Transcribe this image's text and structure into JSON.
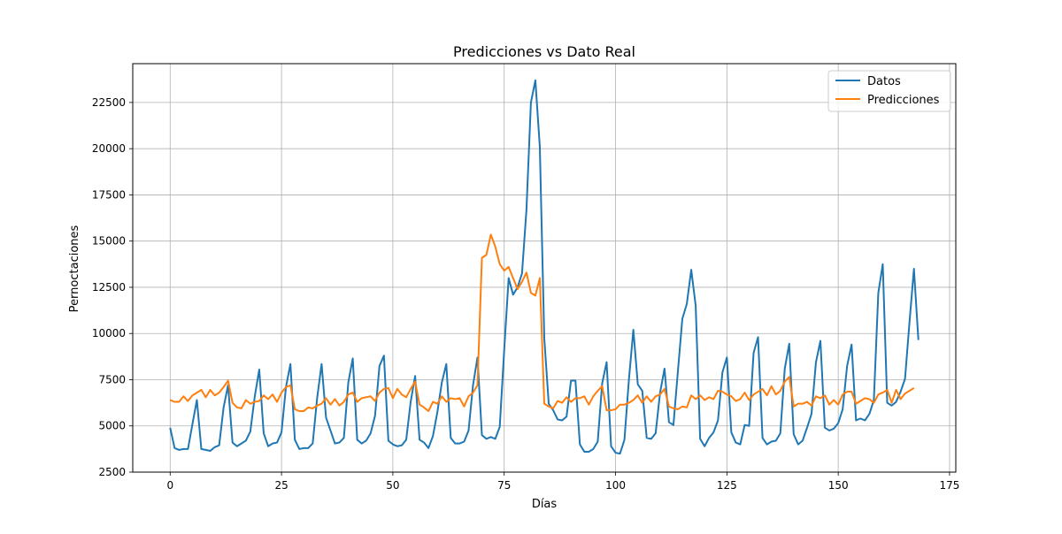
{
  "chart_data": {
    "type": "line",
    "title": "Predicciones vs Dato Real",
    "xlabel": "Días",
    "ylabel": "Pernoctaciones",
    "xlim": [
      -8.4,
      176.4
    ],
    "ylim": [
      2500,
      24600
    ],
    "xticks": [
      0,
      25,
      50,
      75,
      100,
      125,
      150,
      175
    ],
    "yticks": [
      2500,
      5000,
      7500,
      10000,
      12500,
      15000,
      17500,
      20000,
      22500
    ],
    "grid": true,
    "legend_position": "top-right",
    "series": [
      {
        "name": "Datos",
        "color": "#1f77b4",
        "values": [
          4900,
          3800,
          3700,
          3750,
          3750,
          5100,
          6400,
          3750,
          3700,
          3650,
          3850,
          3950,
          6000,
          7200,
          4100,
          3900,
          4050,
          4200,
          4700,
          6600,
          8050,
          4600,
          3900,
          4050,
          4100,
          4650,
          7100,
          8350,
          4250,
          3750,
          3800,
          3800,
          4050,
          6500,
          8350,
          5450,
          4750,
          4050,
          4100,
          4350,
          7350,
          8650,
          4250,
          4050,
          4200,
          4600,
          5550,
          8250,
          8800,
          4200,
          4000,
          3900,
          3950,
          4250,
          6300,
          7700,
          4250,
          4100,
          3800,
          4450,
          5750,
          7350,
          8350,
          4350,
          4050,
          4050,
          4150,
          4750,
          7200,
          8700,
          4500,
          4300,
          4400,
          4300,
          4950,
          9100,
          13000,
          12100,
          12500,
          13250,
          16700,
          22500,
          23700,
          20100,
          9750,
          6200,
          5850,
          5350,
          5300,
          5500,
          7450,
          7450,
          4000,
          3600,
          3600,
          3750,
          4150,
          7300,
          8450,
          3900,
          3550,
          3500,
          4250,
          7500,
          10200,
          7250,
          6900,
          4350,
          4300,
          4600,
          6800,
          8100,
          5200,
          5050,
          7950,
          10800,
          11600,
          13450,
          11500,
          4300,
          3900,
          4350,
          4650,
          5300,
          7900,
          8700,
          4650,
          4100,
          4000,
          5050,
          5000,
          8950,
          9800,
          4350,
          4000,
          4150,
          4200,
          4600,
          8100,
          9450,
          4550,
          4000,
          4200,
          4900,
          5650,
          8450,
          9600,
          4900,
          4750,
          4850,
          5150,
          5900,
          8250,
          9400,
          5300,
          5400,
          5300,
          5650,
          6400,
          12200,
          13750,
          6250,
          6100,
          6300,
          6850,
          7550,
          10600,
          13500,
          9650
        ]
      },
      {
        "name": "Predicciones",
        "color": "#ff7f0e",
        "values": [
          6400,
          6300,
          6300,
          6600,
          6350,
          6650,
          6800,
          6950,
          6550,
          6950,
          6650,
          6800,
          7100,
          7450,
          6250,
          6000,
          5950,
          6400,
          6200,
          6300,
          6350,
          6650,
          6450,
          6700,
          6300,
          6800,
          7100,
          7200,
          5900,
          5800,
          5800,
          6000,
          5950,
          6100,
          6200,
          6500,
          6150,
          6450,
          6100,
          6300,
          6700,
          6800,
          6300,
          6500,
          6550,
          6600,
          6350,
          6800,
          7000,
          7050,
          6500,
          7000,
          6700,
          6550,
          7000,
          7400,
          6150,
          6000,
          5800,
          6300,
          6200,
          6600,
          6300,
          6500,
          6450,
          6500,
          6050,
          6600,
          6800,
          7200,
          14100,
          14250,
          15350,
          14700,
          13750,
          13400,
          13600,
          13000,
          12400,
          12800,
          13300,
          12200,
          12050,
          13000,
          6200,
          6050,
          5950,
          6350,
          6250,
          6550,
          6300,
          6500,
          6500,
          6600,
          6150,
          6600,
          6900,
          7150,
          5850,
          5850,
          5900,
          6150,
          6150,
          6250,
          6400,
          6650,
          6250,
          6600,
          6300,
          6600,
          6700,
          7000,
          6050,
          5950,
          5900,
          6050,
          6000,
          6650,
          6450,
          6650,
          6400,
          6550,
          6450,
          6900,
          6850,
          6700,
          6600,
          6350,
          6450,
          6800,
          6400,
          6700,
          6850,
          7000,
          6650,
          7150,
          6700,
          6900,
          7400,
          7650,
          6050,
          6200,
          6200,
          6300,
          6100,
          6600,
          6500,
          6650,
          6150,
          6400,
          6150,
          6700,
          6850,
          6850,
          6200,
          6350,
          6500,
          6450,
          6250,
          6700,
          6800,
          6950,
          6250,
          6950,
          6450,
          6750,
          6900,
          7050
        ]
      }
    ]
  }
}
